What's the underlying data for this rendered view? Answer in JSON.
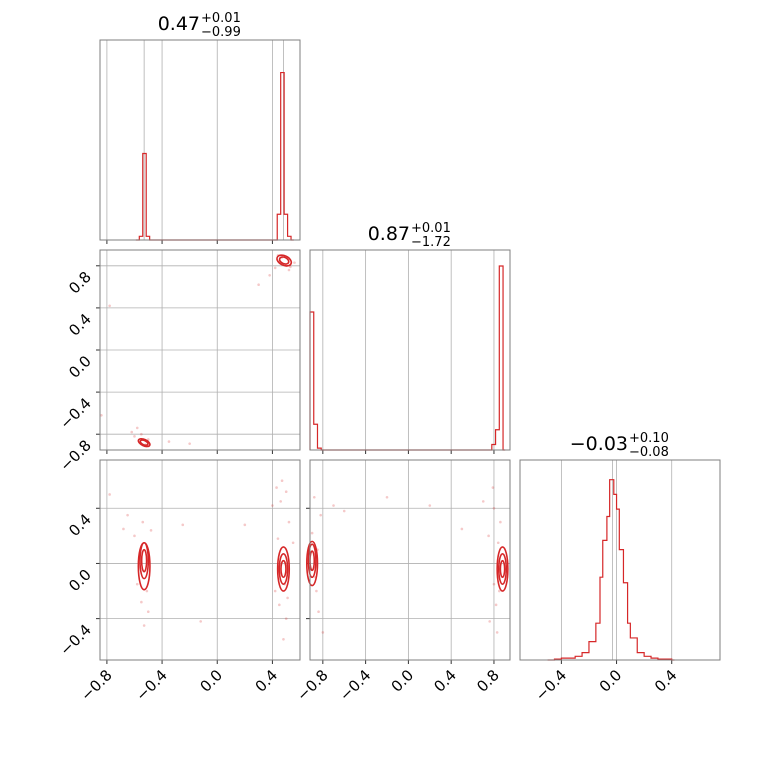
{
  "colors": {
    "accent": "#d62728",
    "frame": "#7f7f7f",
    "grid": "#b0b0b0"
  },
  "chart_data": {
    "type": "corner",
    "grid": true,
    "parameters": [
      {
        "title": {
          "median": "0.47",
          "plus": "+0.01",
          "minus": "−0.99"
        },
        "range": [
          -0.85,
          0.6
        ],
        "hist": {
          "bins": [
            [
              -0.59,
              0.0
            ],
            [
              -0.565,
              0.02
            ],
            [
              -0.54,
              0.47
            ],
            [
              -0.515,
              0.02
            ],
            [
              -0.49,
              0.0
            ],
            [
              0.41,
              0.0
            ],
            [
              0.435,
              0.14
            ],
            [
              0.46,
              0.91
            ],
            [
              0.485,
              0.14
            ],
            [
              0.51,
              0.02
            ],
            [
              0.535,
              0.0
            ]
          ]
        }
      },
      {
        "title": {
          "median": "0.87",
          "plus": "+0.01",
          "minus": "−1.72"
        },
        "range": [
          -0.92,
          0.95
        ],
        "hist": {
          "bins": [
            [
              -0.92,
              0.75
            ],
            [
              -0.885,
              0.14
            ],
            [
              -0.85,
              0.01
            ],
            [
              -0.815,
              0.0
            ],
            [
              0.745,
              0.0
            ],
            [
              0.78,
              0.03
            ],
            [
              0.815,
              0.11
            ],
            [
              0.85,
              1.0
            ],
            [
              0.885,
              0.0
            ]
          ]
        }
      },
      {
        "title": {
          "median": "−0.03",
          "plus": "+0.10",
          "minus": "−0.08"
        },
        "range": [
          -0.7,
          0.75
        ],
        "hist": {
          "bins": [
            [
              -0.5,
              0.0
            ],
            [
              -0.45,
              0.005
            ],
            [
              -0.4,
              0.01
            ],
            [
              -0.35,
              0.01
            ],
            [
              -0.3,
              0.02
            ],
            [
              -0.25,
              0.04
            ],
            [
              -0.2,
              0.1
            ],
            [
              -0.15,
              0.2
            ],
            [
              -0.12,
              0.45
            ],
            [
              -0.1,
              0.65
            ],
            [
              -0.07,
              0.78
            ],
            [
              -0.05,
              0.98
            ],
            [
              -0.02,
              0.9
            ],
            [
              0.0,
              0.82
            ],
            [
              0.02,
              0.6
            ],
            [
              0.05,
              0.42
            ],
            [
              0.08,
              0.2
            ],
            [
              0.1,
              0.12
            ],
            [
              0.15,
              0.04
            ],
            [
              0.2,
              0.02
            ],
            [
              0.25,
              0.01
            ],
            [
              0.3,
              0.005
            ],
            [
              0.4,
              0.0
            ]
          ]
        }
      }
    ],
    "ticks": {
      "p1": [
        -0.8,
        -0.4,
        0.0,
        0.4
      ],
      "p2": [
        -0.8,
        -0.4,
        0.0,
        0.4,
        0.8
      ],
      "p3": [
        -0.4,
        0.0,
        0.4
      ]
    },
    "tick_labels": {
      "p1": [
        "−0.8",
        "−0.4",
        "0.0",
        "0.4"
      ],
      "p2": [
        "−0.8",
        "−0.4",
        "0.0",
        "0.4",
        "0.8"
      ],
      "p3": [
        "−0.4",
        "0.0",
        "0.4"
      ]
    },
    "y_tick_labels": {
      "p2": [
        "0.8",
        "0.4",
        "0.0",
        "−0.4",
        "−0.8"
      ],
      "p3": [
        "0.4",
        "0.0",
        "−0.4"
      ]
    },
    "modes": {
      "p1": [
        -0.53,
        0.48
      ],
      "p2": [
        -0.87,
        0.87
      ],
      "p3": [
        -0.03
      ]
    },
    "scatter": {
      "p1_p2": [
        [
          -0.78,
          0.42
        ],
        [
          -0.84,
          -0.62
        ],
        [
          -0.62,
          -0.78
        ],
        [
          -0.58,
          -0.74
        ],
        [
          -0.35,
          -0.87
        ],
        [
          -0.2,
          -0.89
        ],
        [
          0.3,
          0.62
        ],
        [
          0.38,
          0.71
        ],
        [
          0.56,
          0.83
        ],
        [
          0.53,
          0.79
        ],
        [
          0.42,
          0.78
        ],
        [
          0.47,
          0.88
        ],
        [
          0.45,
          0.84
        ],
        [
          0.5,
          0.8
        ],
        [
          -0.55,
          -0.8
        ],
        [
          -0.5,
          -0.85
        ],
        [
          -0.6,
          -0.82
        ],
        [
          0.44,
          0.9
        ],
        [
          0.52,
          0.76
        ],
        [
          -0.52,
          -0.9
        ]
      ],
      "p1_p3": [
        [
          -0.78,
          0.5
        ],
        [
          -0.65,
          0.35
        ],
        [
          -0.68,
          0.25
        ],
        [
          -0.6,
          0.2
        ],
        [
          -0.55,
          -0.28
        ],
        [
          -0.53,
          -0.45
        ],
        [
          -0.5,
          -0.35
        ],
        [
          -0.58,
          -0.15
        ],
        [
          -0.48,
          0.24
        ],
        [
          -0.25,
          0.28
        ],
        [
          -0.12,
          -0.42
        ],
        [
          0.2,
          0.28
        ],
        [
          0.4,
          0.42
        ],
        [
          0.43,
          0.55
        ],
        [
          0.45,
          -0.3
        ],
        [
          0.5,
          -0.4
        ],
        [
          0.52,
          0.3
        ],
        [
          0.48,
          -0.55
        ],
        [
          0.55,
          0.15
        ],
        [
          0.42,
          -0.2
        ],
        [
          0.46,
          0.45
        ],
        [
          0.5,
          0.52
        ],
        [
          0.51,
          -0.25
        ],
        [
          0.44,
          0.18
        ],
        [
          0.49,
          -0.15
        ],
        [
          -0.51,
          -0.2
        ],
        [
          -0.54,
          0.3
        ],
        [
          0.47,
          0.6
        ]
      ],
      "p2_p3": [
        [
          -0.88,
          0.48
        ],
        [
          -0.82,
          0.35
        ],
        [
          -0.86,
          -0.2
        ],
        [
          -0.84,
          -0.35
        ],
        [
          -0.8,
          -0.5
        ],
        [
          -0.9,
          0.22
        ],
        [
          -0.7,
          0.42
        ],
        [
          -0.6,
          0.38
        ],
        [
          -0.2,
          0.48
        ],
        [
          0.2,
          0.42
        ],
        [
          0.5,
          0.25
        ],
        [
          0.7,
          0.45
        ],
        [
          0.75,
          0.2
        ],
        [
          0.8,
          0.4
        ],
        [
          0.82,
          -0.3
        ],
        [
          0.76,
          -0.42
        ],
        [
          0.85,
          -0.2
        ],
        [
          0.86,
          0.3
        ],
        [
          0.8,
          -0.15
        ],
        [
          0.84,
          0.15
        ],
        [
          0.79,
          0.55
        ],
        [
          -0.87,
          -0.1
        ],
        [
          -0.85,
          0.1
        ],
        [
          0.83,
          -0.5
        ]
      ]
    },
    "contours": {
      "p1_p2": [
        {
          "cx": 0.485,
          "cy": 0.85,
          "rx": 0.035,
          "ry": 0.03,
          "rot": 25
        },
        {
          "cx": 0.485,
          "cy": 0.85,
          "rx": 0.055,
          "ry": 0.045,
          "rot": 25
        },
        {
          "cx": -0.53,
          "cy": -0.88,
          "rx": 0.03,
          "ry": 0.02,
          "rot": 25
        },
        {
          "cx": -0.53,
          "cy": -0.88,
          "rx": 0.045,
          "ry": 0.03,
          "rot": 25
        }
      ],
      "p1_p3": [
        {
          "cx": -0.53,
          "cy": 0.02,
          "rx": 0.018,
          "ry": 0.08,
          "rot": 0
        },
        {
          "cx": -0.53,
          "cy": 0.02,
          "rx": 0.03,
          "ry": 0.13,
          "rot": 0
        },
        {
          "cx": -0.53,
          "cy": -0.02,
          "rx": 0.042,
          "ry": 0.17,
          "rot": 0
        },
        {
          "cx": 0.48,
          "cy": -0.04,
          "rx": 0.018,
          "ry": 0.06,
          "rot": 0
        },
        {
          "cx": 0.48,
          "cy": -0.04,
          "rx": 0.03,
          "ry": 0.11,
          "rot": 0
        },
        {
          "cx": 0.48,
          "cy": -0.04,
          "rx": 0.042,
          "ry": 0.16,
          "rot": 0
        }
      ],
      "p2_p3": [
        {
          "cx": -0.9,
          "cy": 0.02,
          "rx": 0.02,
          "ry": 0.07,
          "rot": 0
        },
        {
          "cx": -0.9,
          "cy": 0.02,
          "rx": 0.035,
          "ry": 0.12,
          "rot": 0
        },
        {
          "cx": -0.9,
          "cy": 0.0,
          "rx": 0.05,
          "ry": 0.16,
          "rot": 0
        },
        {
          "cx": 0.88,
          "cy": -0.04,
          "rx": 0.02,
          "ry": 0.06,
          "rot": 0
        },
        {
          "cx": 0.88,
          "cy": -0.04,
          "rx": 0.035,
          "ry": 0.11,
          "rot": 0
        },
        {
          "cx": 0.88,
          "cy": -0.04,
          "rx": 0.05,
          "ry": 0.16,
          "rot": 0
        }
      ]
    },
    "scatter_ranges": {
      "p1_p2": {
        "x": [
          -0.85,
          0.6
        ],
        "y": [
          -0.95,
          0.95
        ]
      },
      "p1_p3": {
        "x": [
          -0.85,
          0.6
        ],
        "y": [
          -0.7,
          0.75
        ]
      },
      "p2_p3": {
        "x": [
          -0.92,
          0.95
        ],
        "y": [
          -0.7,
          0.75
        ]
      }
    }
  }
}
